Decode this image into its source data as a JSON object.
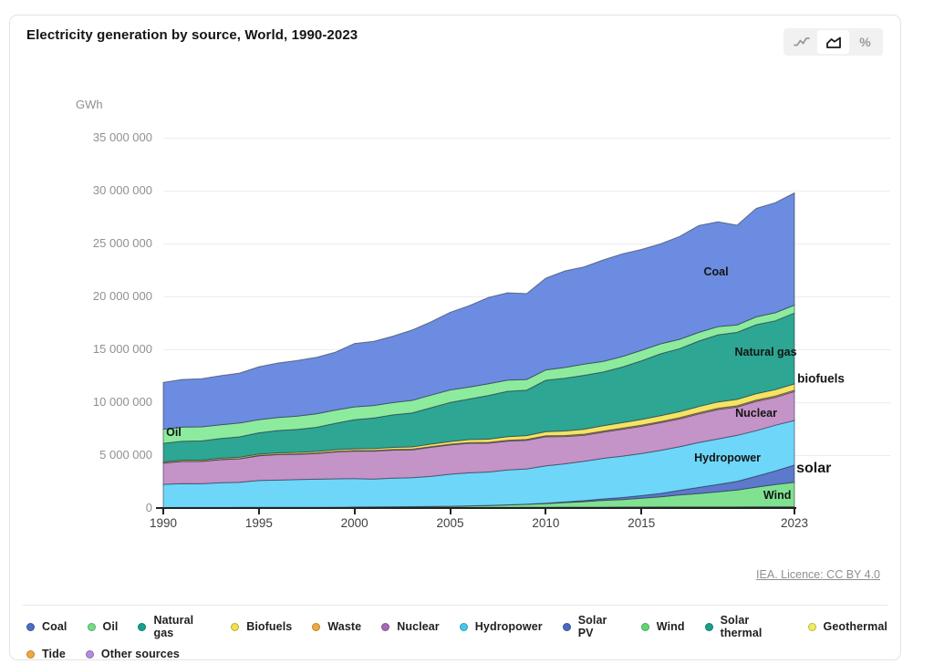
{
  "card": {
    "title": "Electricity generation by source, World, 1990-2023",
    "source_link": "IEA. Licence: CC BY 4.0"
  },
  "toolbar": {
    "line_toggle_icon": "line-chart-icon",
    "area_toggle_icon": "area-chart-icon",
    "percent_label": "%",
    "active_view": "area"
  },
  "chart_data": {
    "type": "area",
    "stacked": true,
    "unit": "GWh",
    "title": "Electricity generation by source, World, 1990-2023",
    "xlabel": "",
    "ylabel": "GWh",
    "grid": true,
    "legend_position": "bottom",
    "xlim": [
      1990,
      2023
    ],
    "ylim": [
      0,
      35000000
    ],
    "x": [
      1990,
      1991,
      1992,
      1993,
      1994,
      1995,
      1996,
      1997,
      1998,
      1999,
      2000,
      2001,
      2002,
      2003,
      2004,
      2005,
      2006,
      2007,
      2008,
      2009,
      2010,
      2011,
      2012,
      2013,
      2014,
      2015,
      2016,
      2017,
      2018,
      2019,
      2020,
      2021,
      2022,
      2023
    ],
    "x_ticks": [
      1990,
      1995,
      2000,
      2005,
      2010,
      2015,
      2023
    ],
    "y_ticks": [
      {
        "value": 0,
        "label": "0"
      },
      {
        "value": 5000000,
        "label": "5 000 000"
      },
      {
        "value": 10000000,
        "label": "10 000 000"
      },
      {
        "value": 15000000,
        "label": "15 000 000"
      },
      {
        "value": 20000000,
        "label": "20 000 000"
      },
      {
        "value": 25000000,
        "label": "25 000 000"
      },
      {
        "value": 30000000,
        "label": "30 000 000"
      },
      {
        "value": 35000000,
        "label": "35 000 000"
      }
    ],
    "series": [
      {
        "name": "Other sources",
        "color": "#b48ce0",
        "values": [
          5000,
          5000,
          5000,
          5000,
          5000,
          5000,
          5000,
          5000,
          5000,
          5000,
          6000,
          6000,
          6000,
          6000,
          6000,
          6000,
          7000,
          7000,
          7000,
          7000,
          8000,
          8000,
          8000,
          8000,
          9000,
          9000,
          9000,
          9000,
          10000,
          10000,
          10000,
          10000,
          10000,
          10000
        ]
      },
      {
        "name": "Tide",
        "color": "#f0a843",
        "values": [
          1000,
          1000,
          1000,
          1000,
          1000,
          1000,
          1000,
          1000,
          1000,
          1000,
          1000,
          1000,
          1000,
          1000,
          1000,
          1000,
          1000,
          1000,
          1000,
          1000,
          1000,
          1000,
          1000,
          1000,
          1000,
          1000,
          1000,
          1000,
          1000,
          1000,
          1000,
          1000,
          1000,
          1000
        ]
      },
      {
        "name": "Geothermal",
        "color": "#eee75e",
        "values": [
          36000,
          38000,
          40000,
          41000,
          43000,
          44000,
          46000,
          47000,
          49000,
          50000,
          52000,
          53000,
          55000,
          57000,
          58000,
          60000,
          61000,
          63000,
          64000,
          66000,
          68000,
          70000,
          72000,
          74000,
          76000,
          78000,
          80000,
          83000,
          86000,
          89000,
          91000,
          93000,
          95000,
          97000
        ]
      },
      {
        "name": "Solar thermal",
        "color": "#1ba18d",
        "values": [
          1000,
          1000,
          1000,
          1000,
          1000,
          1000,
          1000,
          1000,
          1000,
          1000,
          1000,
          1000,
          1000,
          1000,
          1000,
          1000,
          1000,
          1000,
          1000,
          2000,
          2000,
          3000,
          4000,
          6000,
          8000,
          9000,
          10000,
          11000,
          12000,
          13000,
          13000,
          14000,
          14000,
          15000
        ]
      },
      {
        "name": "Wind",
        "color": "#80e291",
        "values": [
          4000,
          5000,
          5000,
          6000,
          7000,
          8000,
          9000,
          12000,
          16000,
          21000,
          31000,
          38000,
          52000,
          63000,
          85000,
          104000,
          133000,
          170000,
          220000,
          275000,
          342000,
          435000,
          520000,
          635000,
          710000,
          831000,
          960000,
          1135000,
          1265000,
          1420000,
          1591000,
          1860000,
          2098000,
          2310000
        ]
      },
      {
        "name": "Solar PV",
        "color": "#5d79cb",
        "values": [
          0,
          0,
          0,
          0,
          0,
          0,
          0,
          0,
          0,
          1000,
          1000,
          1000,
          2000,
          2000,
          3000,
          4000,
          5000,
          7000,
          12000,
          20000,
          32000,
          61000,
          97000,
          135000,
          185000,
          247000,
          320000,
          435000,
          570000,
          700000,
          821000,
          1033000,
          1293000,
          1629000
        ]
      },
      {
        "name": "Hydropower",
        "color": "#6ed6f9",
        "values": [
          2191000,
          2255000,
          2240000,
          2330000,
          2370000,
          2545000,
          2580000,
          2620000,
          2650000,
          2680000,
          2694000,
          2640000,
          2700000,
          2730000,
          2850000,
          3019000,
          3120000,
          3160000,
          3290000,
          3330000,
          3531000,
          3600000,
          3720000,
          3840000,
          3920000,
          3978000,
          4080000,
          4120000,
          4250000,
          4290000,
          4347000,
          4300000,
          4320000,
          4210000
        ]
      },
      {
        "name": "Nuclear",
        "color": "#c493c8",
        "values": [
          2013000,
          2096000,
          2111000,
          2185000,
          2225000,
          2332000,
          2406000,
          2390000,
          2431000,
          2540000,
          2591000,
          2637000,
          2660000,
          2635000,
          2740000,
          2768000,
          2790000,
          2719000,
          2731000,
          2696000,
          2756000,
          2584000,
          2461000,
          2478000,
          2535000,
          2571000,
          2605000,
          2636000,
          2701000,
          2790000,
          2674000,
          2776000,
          2632000,
          2740000
        ]
      },
      {
        "name": "Waste",
        "color": "#f2a84e",
        "values": [
          20000,
          23000,
          26000,
          29000,
          32000,
          35000,
          38000,
          41000,
          44000,
          47000,
          50000,
          54000,
          58000,
          62000,
          66000,
          70000,
          74000,
          78000,
          82000,
          86000,
          90000,
          94000,
          98000,
          102000,
          105000,
          108000,
          110000,
          112000,
          114000,
          116000,
          118000,
          119000,
          120000,
          120000
        ]
      },
      {
        "name": "Biofuels",
        "color": "#f3e464",
        "values": [
          96000,
          100000,
          105000,
          110000,
          118000,
          125000,
          132000,
          140000,
          150000,
          160000,
          170000,
          185000,
          200000,
          215000,
          235000,
          255000,
          280000,
          305000,
          330000,
          360000,
          390000,
          430000,
          465000,
          495000,
          520000,
          540000,
          555000,
          570000,
          585000,
          595000,
          600000,
          605000,
          610000,
          600000
        ]
      },
      {
        "name": "Natural gas",
        "color": "#2da693",
        "values": [
          1751000,
          1790000,
          1810000,
          1860000,
          1930000,
          2019000,
          2110000,
          2180000,
          2280000,
          2500000,
          2753000,
          2890000,
          3070000,
          3220000,
          3440000,
          3692000,
          3840000,
          4130000,
          4300000,
          4300000,
          4855000,
          4990000,
          5100000,
          5080000,
          5260000,
          5543000,
          5850000,
          5960000,
          6190000,
          6350000,
          6335000,
          6520000,
          6507000,
          6700000
        ]
      },
      {
        "name": "Oil",
        "color": "#8deb9e",
        "values": [
          1330000,
          1340000,
          1330000,
          1300000,
          1310000,
          1241000,
          1230000,
          1240000,
          1270000,
          1250000,
          1211000,
          1180000,
          1160000,
          1180000,
          1190000,
          1186000,
          1120000,
          1100000,
          1060000,
          1000000,
          977000,
          1010000,
          1060000,
          1010000,
          990000,
          990000,
          940000,
          880000,
          820000,
          770000,
          710000,
          740000,
          760000,
          750000
        ]
      },
      {
        "name": "Coal",
        "color": "#6b8ce0",
        "values": [
          4426000,
          4500000,
          4545000,
          4640000,
          4716000,
          4994000,
          5145000,
          5269000,
          5342000,
          5475000,
          5995000,
          6072000,
          6280000,
          6650000,
          6925000,
          7333000,
          7695000,
          8160000,
          8250000,
          8120000,
          8670000,
          9130000,
          9190000,
          9580000,
          9705000,
          9538000,
          9450000,
          9720000,
          10100000,
          9914000,
          9421000,
          10244000,
          10400000,
          10600000
        ]
      }
    ],
    "annotations": [
      {
        "label": "Oil",
        "year": 1990.15,
        "value": 7150000,
        "size": 12.5,
        "anchor": "left"
      },
      {
        "label": "Coal",
        "year": 2018.9,
        "value": 22300000,
        "size": 12.5,
        "anchor": "center"
      },
      {
        "label": "Natural gas",
        "year": 2021.5,
        "value": 14700000,
        "size": 12.5,
        "anchor": "center"
      },
      {
        "label": "biofuels",
        "year": 2023.15,
        "value": 12250000,
        "size": 13.5,
        "anchor": "left"
      },
      {
        "label": "Nuclear",
        "year": 2021.0,
        "value": 8950000,
        "size": 12.5,
        "anchor": "center"
      },
      {
        "label": "Hydropower",
        "year": 2019.5,
        "value": 4750000,
        "size": 12.5,
        "anchor": "center"
      },
      {
        "label": "solar",
        "year": 2023.1,
        "value": 3700000,
        "size": 16,
        "anchor": "left"
      },
      {
        "label": "Wind",
        "year": 2022.1,
        "value": 1200000,
        "size": 12.5,
        "anchor": "center"
      }
    ]
  },
  "legend": {
    "rows": [
      [
        {
          "label": "Coal",
          "color": "#4a70c4"
        },
        {
          "label": "Oil",
          "color": "#72dc86"
        },
        {
          "label": "Natural gas",
          "color": "#17a08c"
        },
        {
          "label": "Biofuels",
          "color": "#f2df4e"
        },
        {
          "label": "Waste",
          "color": "#f0a843"
        },
        {
          "label": "Nuclear",
          "color": "#a869b8"
        },
        {
          "label": "Hydropower",
          "color": "#45c8f0"
        },
        {
          "label": "Solar PV",
          "color": "#4a6abc"
        },
        {
          "label": "Wind",
          "color": "#5fd674"
        },
        {
          "label": "Solar thermal",
          "color": "#17a08c"
        },
        {
          "label": "Geothermal",
          "color": "#f0ec5e"
        }
      ],
      [
        {
          "label": "Tide",
          "color": "#f0a843"
        },
        {
          "label": "Other sources",
          "color": "#b48ce0"
        }
      ]
    ]
  }
}
